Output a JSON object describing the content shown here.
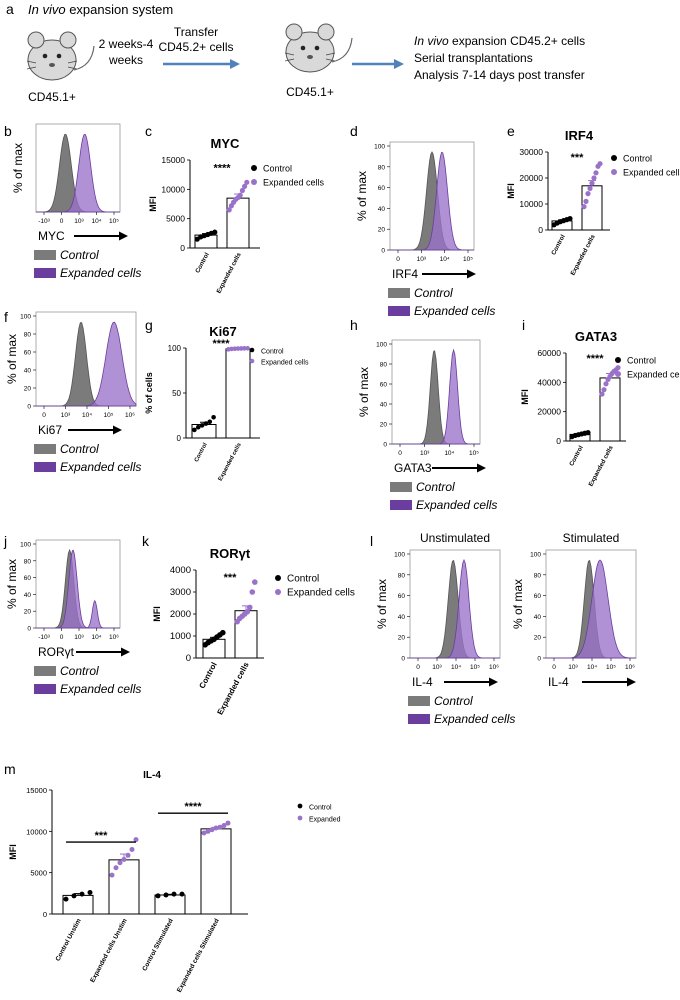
{
  "colors": {
    "purple": "#9a72c9",
    "purple_dark": "#6a3d9e",
    "gray": "#7b7b7b",
    "arrow_blue": "#4f81bd",
    "mouse_fill": "#d9d9d9"
  },
  "schematic": {
    "panel": "a",
    "title_italic": "In vivo",
    "title_rest": " expansion system",
    "donor_label": "CD45.1+",
    "duration": [
      "2 weeks-4",
      "weeks"
    ],
    "transfer": [
      "Transfer",
      "CD45.2+ cells"
    ],
    "recipient_label": "CD45.1+",
    "outcome_italic": "In vivo",
    "outcome_rest": " expansion CD45.2+ cells",
    "outcome_lines": [
      "Serial transplantations",
      "Analysis 7-14 days post transfer"
    ]
  },
  "common": {
    "y_label_hist": "% of max",
    "legend_control": "Control",
    "legend_expanded": "Expanded cells",
    "group_control": "Control",
    "group_expanded": "Expanded cells",
    "legend_expanded_m": "Expanded"
  },
  "chart_data": [
    {
      "panel": "b",
      "type": "histogram",
      "marker": "MYC",
      "x_ticks": [
        "-10³",
        "0",
        "10³",
        "10⁴",
        "10⁵"
      ],
      "y_ticks": [],
      "peaks": {
        "control": 0.35,
        "expanded": 0.58
      }
    },
    {
      "panel": "c",
      "type": "bar",
      "title": "MYC",
      "ylabel": "MFI",
      "ylim": [
        0,
        15000
      ],
      "yticks": [
        0,
        5000,
        10000,
        15000
      ],
      "categories": [
        "Control",
        "Expanded cells"
      ],
      "values": [
        2200,
        8500
      ],
      "errors": [
        250,
        700
      ],
      "points": [
        [
          1500,
          1900,
          2100,
          2300,
          2500,
          2700
        ],
        [
          6500,
          7200,
          7800,
          8300,
          8600,
          9000,
          9800,
          10500,
          11200
        ]
      ],
      "significance": "****",
      "legend": [
        "Control",
        "Expanded cells"
      ]
    },
    {
      "panel": "d",
      "type": "histogram",
      "marker": "IRF4",
      "x_ticks": [
        "0",
        "10³",
        "10⁴",
        "10⁵"
      ],
      "y_ticks": [
        "0",
        "20",
        "40",
        "60",
        "80",
        "100"
      ],
      "peaks": {
        "control": 0.5,
        "expanded": 0.62
      }
    },
    {
      "panel": "e",
      "type": "bar",
      "title": "IRF4",
      "ylabel": "MFI",
      "ylim": [
        0,
        30000
      ],
      "yticks": [
        0,
        10000,
        20000,
        30000
      ],
      "categories": [
        "Control",
        "Expanded cells"
      ],
      "values": [
        3500,
        17000
      ],
      "errors": [
        400,
        2000
      ],
      "points": [
        [
          2000,
          2700,
          3200,
          3600,
          4000,
          4400
        ],
        [
          9000,
          11000,
          14000,
          16000,
          18000,
          20000,
          22000,
          24500,
          25500
        ]
      ],
      "significance": "***",
      "legend": [
        "Control",
        "Expanded cells"
      ]
    },
    {
      "panel": "f",
      "type": "histogram",
      "marker": "Ki67",
      "x_ticks": [
        "0",
        "10³",
        "10⁴",
        "10⁵",
        "10⁶"
      ],
      "y_ticks": [
        "0",
        "20",
        "40",
        "60",
        "80",
        "100"
      ],
      "peaks": {
        "control": 0.45,
        "expanded": 0.78
      }
    },
    {
      "panel": "g",
      "type": "bar",
      "title": "Ki67",
      "ylabel": "% of cells",
      "ylim": [
        0,
        100
      ],
      "yticks": [
        0,
        50,
        100
      ],
      "categories": [
        "Control",
        "Expanded cells"
      ],
      "values": [
        15,
        99
      ],
      "errors": [
        2.5,
        0.4
      ],
      "points": [
        [
          9,
          12,
          14,
          16,
          18,
          23
        ],
        [
          98.5,
          99,
          99.2,
          99.4,
          99.5,
          99.6,
          99.7
        ]
      ],
      "significance": "****",
      "legend": [
        "Control",
        "Expanded cells"
      ]
    },
    {
      "panel": "h",
      "type": "histogram",
      "marker": "GATA3",
      "x_ticks": [
        "0",
        "10³",
        "10⁴",
        "10⁵"
      ],
      "y_ticks": [
        "0",
        "20",
        "40",
        "60",
        "80",
        "100"
      ],
      "peaks": {
        "control": 0.48,
        "expanded": 0.7
      }
    },
    {
      "panel": "i",
      "type": "bar",
      "title": "GATA3",
      "ylabel": "MFI",
      "ylim": [
        0,
        60000
      ],
      "yticks": [
        0,
        20000,
        40000,
        60000
      ],
      "categories": [
        "Control",
        "Expanded cells"
      ],
      "values": [
        4500,
        43000
      ],
      "errors": [
        500,
        3000
      ],
      "points": [
        [
          3000,
          3800,
          4300,
          4800,
          5300,
          5700
        ],
        [
          32000,
          35000,
          39000,
          42000,
          44000,
          46000,
          47500,
          48500,
          50000
        ]
      ],
      "significance": "****",
      "legend": [
        "Control",
        "Expanded cells"
      ]
    },
    {
      "panel": "j",
      "type": "histogram",
      "marker": "RORγt",
      "x_ticks": [
        "-10³",
        "0",
        "10³",
        "10⁴",
        "10⁶"
      ],
      "y_ticks": [
        "0",
        "20",
        "40",
        "60",
        "80",
        "100"
      ],
      "peaks": {
        "control": 0.4,
        "expanded": 0.44,
        "expanded_second": 0.7
      }
    },
    {
      "panel": "k",
      "type": "bar",
      "title": "RORγt",
      "ylabel": "MFI",
      "ylim": [
        0,
        4000
      ],
      "yticks": [
        0,
        1000,
        2000,
        3000,
        4000
      ],
      "categories": [
        "Control",
        "Expanded cells"
      ],
      "values": [
        850,
        2150
      ],
      "errors": [
        90,
        220
      ],
      "points": [
        [
          600,
          700,
          780,
          850,
          950,
          1050,
          1150
        ],
        [
          1650,
          1800,
          1900,
          2000,
          2100,
          2300,
          3000,
          3450
        ]
      ],
      "significance": "***",
      "legend": [
        "Control",
        "Expanded cells"
      ]
    },
    {
      "panel": "l",
      "type": "histogram",
      "marker": "IL-4",
      "subtitle": "Unstimulated",
      "x_ticks": [
        "0",
        "10³",
        "10⁴",
        "10⁵",
        "10⁶"
      ],
      "y_ticks": [
        "0",
        "20",
        "40",
        "60",
        "80",
        "100"
      ],
      "peaks": {
        "control": 0.48,
        "expanded": 0.6
      }
    },
    {
      "panel": "l2",
      "type": "histogram",
      "marker": "IL-4",
      "subtitle": "Stimulated",
      "x_ticks": [
        "0",
        "10³",
        "10⁴",
        "10⁵",
        "10⁶"
      ],
      "y_ticks": [
        "0",
        "20",
        "40",
        "60",
        "80",
        "100"
      ],
      "peaks": {
        "control": 0.48,
        "expanded": 0.6
      }
    },
    {
      "panel": "m",
      "type": "bar",
      "title": "IL-4",
      "ylabel": "MFI",
      "ylim": [
        0,
        15000
      ],
      "yticks": [
        0,
        5000,
        10000,
        15000
      ],
      "categories": [
        "Control Unstim",
        "Expanded cells Unstim",
        "Control Stimulated",
        "Expanded cells Stimulated"
      ],
      "values": [
        2250,
        6550,
        2300,
        10300
      ],
      "errors": [
        220,
        700,
        80,
        180
      ],
      "points": [
        [
          1800,
          2200,
          2400,
          2600
        ],
        [
          4700,
          5600,
          6200,
          6600,
          7100,
          7800,
          9000
        ],
        [
          2200,
          2300,
          2400,
          2400
        ],
        [
          9800,
          10000,
          10200,
          10400,
          10500,
          10700,
          11000
        ]
      ],
      "group_kind": [
        "control",
        "expanded",
        "control",
        "expanded"
      ],
      "significance": [
        {
          "between": [
            0,
            1
          ],
          "label": "***"
        },
        {
          "between": [
            2,
            3
          ],
          "label": "****"
        }
      ],
      "legend": [
        "Control",
        "Expanded"
      ]
    }
  ]
}
